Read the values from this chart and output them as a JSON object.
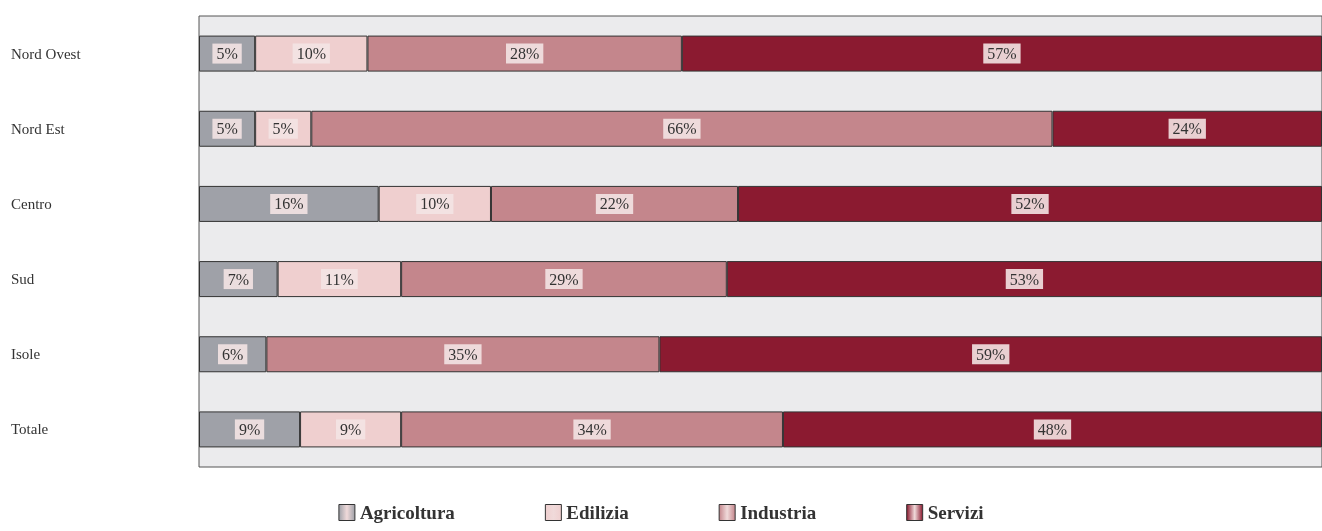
{
  "chart_data": {
    "type": "bar",
    "orientation": "horizontal",
    "stacked": true,
    "categories": [
      "Nord Ovest",
      "Nord Est",
      "Centro",
      "Sud",
      "Isole",
      "Totale"
    ],
    "xlim": [
      0,
      100
    ],
    "tick_labels": "y",
    "grid": false,
    "legend": "bottom",
    "series": [
      {
        "name": "Agricoltura",
        "color": "#9fa1a8",
        "values": [
          5,
          5,
          16,
          7,
          6,
          9
        ],
        "value_labels": [
          "5%",
          "5%",
          "16%",
          "7%",
          "6%",
          "9%"
        ]
      },
      {
        "name": "Edilizia",
        "color": "#efcfcf",
        "values": [
          10,
          5,
          10,
          11,
          null,
          9
        ],
        "value_labels": [
          "10%",
          "5%",
          "10%",
          "11%",
          null,
          "9%"
        ]
      },
      {
        "name": "Industria",
        "color": "#c4868c",
        "values": [
          28,
          66,
          22,
          29,
          35,
          34
        ],
        "value_labels": [
          "28%",
          "66%",
          "22%",
          "29%",
          "35%",
          "34%"
        ]
      },
      {
        "name": "Servizi",
        "color": "#8b1a30",
        "values": [
          57,
          24,
          52,
          53,
          59,
          48
        ],
        "value_labels": [
          "57%",
          "24%",
          "52%",
          "53%",
          "59%",
          "48%"
        ]
      }
    ]
  }
}
